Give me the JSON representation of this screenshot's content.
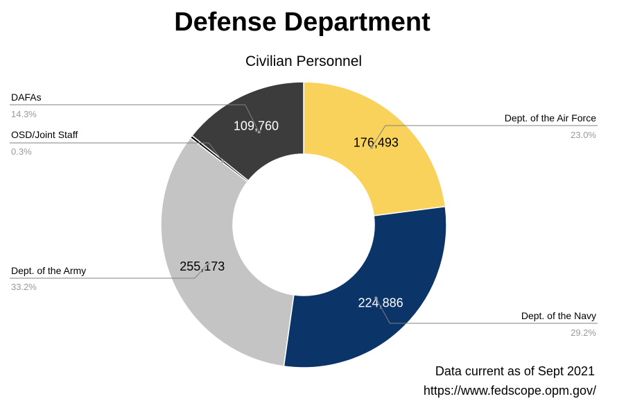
{
  "chart_data": {
    "type": "pie",
    "title": "Defense Department",
    "subtitle": "Civilian Personnel",
    "donut": true,
    "categories": [
      "Dept. of the Air Force",
      "Dept. of the Navy",
      "Dept. of the Army",
      "OSD/Joint Staff",
      "DAFAs"
    ],
    "values": [
      176493,
      224886,
      255173,
      2300,
      109760
    ],
    "value_labels": [
      "176,493",
      "224,886",
      "255,173",
      "",
      "109,760"
    ],
    "percent_labels": [
      "23.0%",
      "29.2%",
      "33.2%",
      "0.3%",
      "14.3%"
    ],
    "colors": [
      "#f8d25a",
      "#0b3468",
      "#c4c4c4",
      "#000000",
      "#3c3c3c"
    ],
    "value_label_colors": [
      "#000000",
      "#ffffff",
      "#000000",
      "#ffffff",
      "#ffffff"
    ],
    "notes": [
      "Data current as of Sept 2021",
      "https://www.fedscope.opm.gov/"
    ]
  }
}
